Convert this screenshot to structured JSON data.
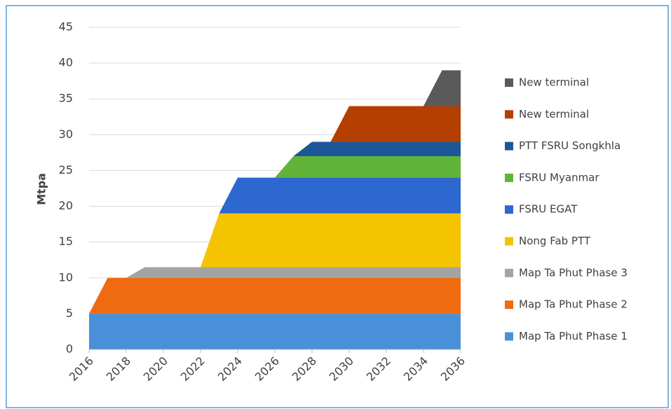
{
  "chart_data": {
    "type": "stacked_area",
    "y_label": "Mtpa",
    "x": [
      2016,
      2017,
      2018,
      2019,
      2020,
      2021,
      2022,
      2023,
      2024,
      2025,
      2026,
      2027,
      2028,
      2029,
      2030,
      2031,
      2032,
      2033,
      2034,
      2035,
      2036
    ],
    "xlim": [
      2016,
      2036
    ],
    "xticks": [
      2016,
      2018,
      2020,
      2022,
      2024,
      2026,
      2028,
      2030,
      2032,
      2034,
      2036
    ],
    "ylim": [
      0,
      45
    ],
    "yticks": [
      0,
      5,
      10,
      15,
      20,
      25,
      30,
      35,
      40,
      45
    ],
    "grid": true,
    "legend": "right",
    "series": [
      {
        "name": "Map Ta Phut Phase 1",
        "color": "#4a90d9",
        "values": [
          5,
          5,
          5,
          5,
          5,
          5,
          5,
          5,
          5,
          5,
          5,
          5,
          5,
          5,
          5,
          5,
          5,
          5,
          5,
          5,
          5
        ]
      },
      {
        "name": "Map Ta Phut Phase 2",
        "color": "#f06a10",
        "values": [
          0,
          5,
          5,
          5,
          5,
          5,
          5,
          5,
          5,
          5,
          5,
          5,
          5,
          5,
          5,
          5,
          5,
          5,
          5,
          5,
          5
        ]
      },
      {
        "name": "Map Ta Phut Phase 3",
        "color": "#a3a3a3",
        "values": [
          0,
          0,
          0,
          1.5,
          1.5,
          1.5,
          1.5,
          1.5,
          1.5,
          1.5,
          1.5,
          1.5,
          1.5,
          1.5,
          1.5,
          1.5,
          1.5,
          1.5,
          1.5,
          1.5,
          1.5
        ]
      },
      {
        "name": "Nong Fab PTT",
        "color": "#f5c400",
        "values": [
          0,
          0,
          0,
          0,
          0,
          0,
          0,
          7.5,
          7.5,
          7.5,
          7.5,
          7.5,
          7.5,
          7.5,
          7.5,
          7.5,
          7.5,
          7.5,
          7.5,
          7.5,
          7.5
        ]
      },
      {
        "name": "FSRU EGAT",
        "color": "#2d67d0",
        "values": [
          0,
          0,
          0,
          0,
          0,
          0,
          0,
          0,
          5,
          5,
          5,
          5,
          5,
          5,
          5,
          5,
          5,
          5,
          5,
          5,
          5
        ]
      },
      {
        "name": "FSRU Myanmar",
        "color": "#62b33a",
        "values": [
          0,
          0,
          0,
          0,
          0,
          0,
          0,
          0,
          0,
          0,
          0,
          3,
          3,
          3,
          3,
          3,
          3,
          3,
          3,
          3,
          3
        ]
      },
      {
        "name": "PTT FSRU Songkhla",
        "color": "#1d5797",
        "values": [
          0,
          0,
          0,
          0,
          0,
          0,
          0,
          0,
          0,
          0,
          0,
          0,
          2,
          2,
          2,
          2,
          2,
          2,
          2,
          2,
          2
        ]
      },
      {
        "name": "New terminal",
        "color": "#b34000",
        "values": [
          0,
          0,
          0,
          0,
          0,
          0,
          0,
          0,
          0,
          0,
          0,
          0,
          0,
          0,
          5,
          5,
          5,
          5,
          5,
          5,
          5
        ]
      },
      {
        "name": "New terminal",
        "color": "#5a5a5a",
        "values": [
          0,
          0,
          0,
          0,
          0,
          0,
          0,
          0,
          0,
          0,
          0,
          0,
          0,
          0,
          0,
          0,
          0,
          0,
          0,
          5,
          5
        ]
      }
    ]
  }
}
